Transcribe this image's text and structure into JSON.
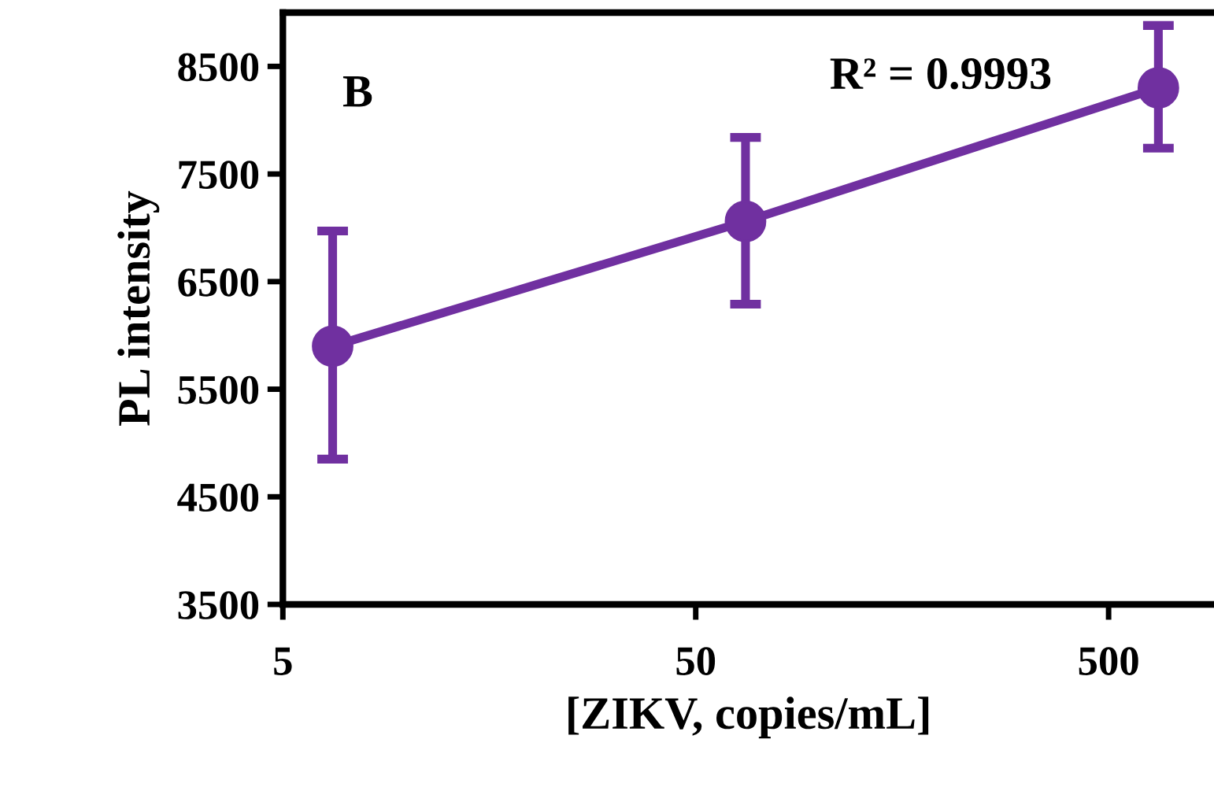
{
  "chart_data": {
    "type": "line",
    "xlabel": "[ZIKV, copies/mL]",
    "ylabel": "PL intensity",
    "log": "x",
    "x": [
      6.6,
      66,
      660
    ],
    "series": [
      {
        "color": "#7030a0",
        "values": [
          5900,
          7060,
          8300
        ],
        "errors": [
          [
            4850,
            6970
          ],
          [
            6290,
            7840
          ],
          [
            7740,
            8880
          ]
        ]
      }
    ],
    "xlim": [
      5,
      900
    ],
    "xticks": [
      5,
      50,
      500
    ],
    "ylim": [
      3500,
      9000
    ],
    "yticks": [
      3500,
      4500,
      5500,
      6500,
      7500,
      8500
    ],
    "marker": "circle",
    "grid": false,
    "annotations": [
      "B",
      "R² = 0.9993"
    ]
  }
}
